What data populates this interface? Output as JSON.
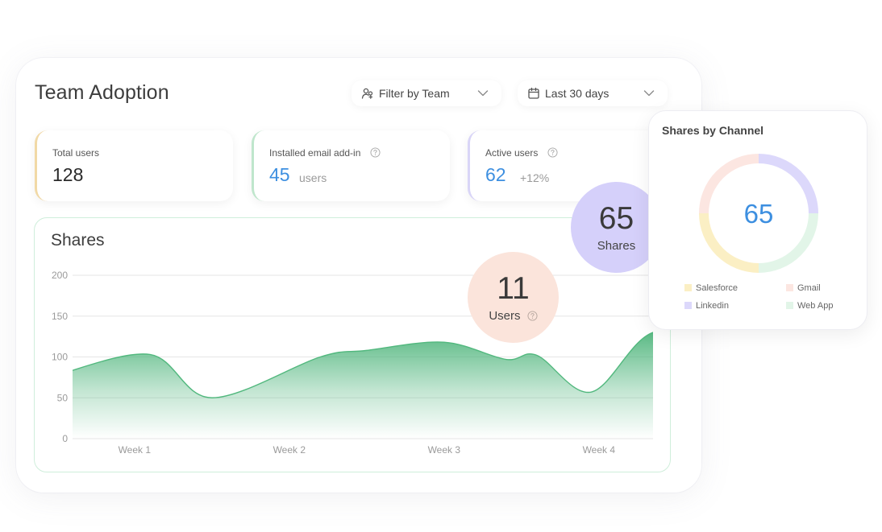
{
  "header": {
    "title": "Team Adoption",
    "filter_team_label": "Filter by Team",
    "date_range_label": "Last 30 days"
  },
  "stats": {
    "total_users": {
      "label": "Total users",
      "value": "128"
    },
    "installed_addin": {
      "label": "Installed email add-in",
      "value": "45",
      "unit": "users"
    },
    "active_users": {
      "label": "Active users",
      "value": "62",
      "change": "+12%"
    }
  },
  "shares": {
    "title": "Shares"
  },
  "bubbles": {
    "users": {
      "value": "11",
      "label": "Users"
    },
    "shares": {
      "value": "65",
      "label": "Shares"
    }
  },
  "channel": {
    "title": "Shares by Channel",
    "total": "65",
    "legend": [
      {
        "name": "Salesforce",
        "color": "#fbefc4"
      },
      {
        "name": "Gmail",
        "color": "#fce6e1"
      },
      {
        "name": "Linkedin",
        "color": "#dcd8fb"
      },
      {
        "name": "Web App",
        "color": "#e2f5e8"
      }
    ],
    "segments": [
      {
        "name": "Linkedin",
        "value": 16.25,
        "color": "#dcd8fb"
      },
      {
        "name": "Web App",
        "value": 16.25,
        "color": "#e2f5e8"
      },
      {
        "name": "Salesforce",
        "value": 16.25,
        "color": "#fbefc4"
      },
      {
        "name": "Gmail",
        "value": 16.25,
        "color": "#fce6e1"
      }
    ]
  },
  "chart_data": {
    "type": "area",
    "x": [
      0,
      0.6,
      1,
      1.7,
      2,
      2.5,
      2.9,
      3.1,
      3.45,
      3.85,
      4.35
    ],
    "y": [
      78,
      103,
      50,
      100,
      108,
      118,
      97,
      102,
      57,
      130,
      116
    ],
    "categories": [
      "Week 1",
      "Week 2",
      "Week 3",
      "Week 4"
    ],
    "category_positions": [
      0.5,
      1.5,
      2.5,
      3.5
    ],
    "xlim": [
      0.1,
      3.85
    ],
    "ylim": [
      0,
      200
    ],
    "yticks": [
      0,
      50,
      100,
      150,
      200
    ],
    "grid": true,
    "colors": {
      "line": "#52b87e",
      "fill": "#4fb57c"
    }
  }
}
